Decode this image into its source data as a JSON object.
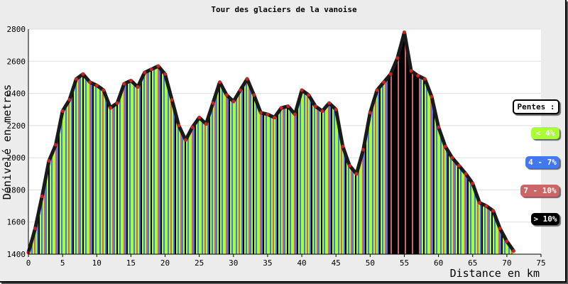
{
  "chart_data": {
    "type": "area",
    "title": "Tour des glaciers de la vanoise",
    "xlabel": "Distance en km",
    "ylabel": "Dénivelé en metres",
    "xlim": [
      0,
      75
    ],
    "ylim": [
      1400,
      2800
    ],
    "xticks": [
      0,
      5,
      10,
      15,
      20,
      25,
      30,
      35,
      40,
      45,
      50,
      55,
      60,
      65,
      70,
      75
    ],
    "yticks": [
      1400,
      1600,
      1800,
      2000,
      2200,
      2400,
      2600,
      2800
    ],
    "grid": "horizontal",
    "legend_position": "right",
    "x": [
      0,
      1,
      2,
      3,
      4,
      5,
      6,
      7,
      8,
      9,
      10,
      11,
      12,
      13,
      14,
      15,
      16,
      17,
      18,
      19,
      20,
      21,
      22,
      23,
      24,
      25,
      26,
      27,
      28,
      29,
      30,
      31,
      32,
      33,
      34,
      35,
      36,
      37,
      38,
      39,
      40,
      41,
      42,
      43,
      44,
      45,
      46,
      47,
      48,
      49,
      50,
      51,
      52,
      53,
      54,
      55,
      56,
      57,
      58,
      59,
      60,
      61,
      62,
      63,
      64,
      65,
      66,
      67,
      68,
      69,
      70,
      71
    ],
    "elevation": [
      1410,
      1560,
      1760,
      1980,
      2080,
      2290,
      2360,
      2490,
      2520,
      2470,
      2450,
      2420,
      2310,
      2340,
      2460,
      2480,
      2440,
      2530,
      2550,
      2570,
      2520,
      2360,
      2200,
      2110,
      2190,
      2250,
      2210,
      2340,
      2470,
      2390,
      2350,
      2420,
      2490,
      2390,
      2280,
      2270,
      2250,
      2310,
      2320,
      2270,
      2420,
      2390,
      2320,
      2290,
      2340,
      2300,
      2070,
      1950,
      1900,
      2050,
      2280,
      2420,
      2470,
      2520,
      2620,
      2780,
      2540,
      2510,
      2490,
      2380,
      2190,
      2070,
      2000,
      1950,
      1900,
      1840,
      1720,
      1700,
      1670,
      1560,
      1480,
      1420
    ],
    "legend": {
      "title": "Pentes :",
      "classes": [
        {
          "label": "< 4%",
          "color": "#aaff33",
          "text_color": "#ffffff"
        },
        {
          "label": "4 - 7%",
          "color": "#4477ee",
          "text_color": "#ffffff"
        },
        {
          "label": "7 - 10%",
          "color": "#cc6666",
          "text_color": "#ffffff"
        },
        {
          "label": "> 10%",
          "color": "#000000",
          "text_color": "#ffffff"
        }
      ]
    },
    "colors": {
      "frame": "#ececec",
      "plot_bg": "#ffffff",
      "grid": "#dddddd",
      "profile_line": "#1a1a1a",
      "marker": "#cc2222"
    }
  }
}
